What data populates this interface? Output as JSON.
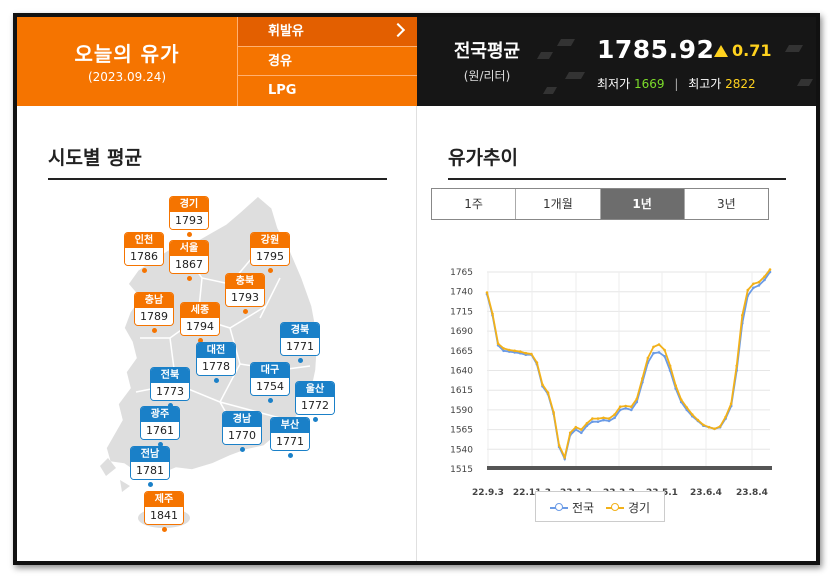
{
  "header": {
    "title": "오늘의 유가",
    "date": "(2023.09.24)",
    "fuel_types": [
      "휘발유",
      "경유",
      "LPG"
    ],
    "national": {
      "title": "전국평균",
      "unit": "(원/리터)",
      "price": "1785.92",
      "change": "0.71",
      "min_label": "최저가",
      "min_value": "1669",
      "max_label": "최고가",
      "max_value": "2822"
    }
  },
  "regional": {
    "title": "시도별 평균",
    "regions": [
      {
        "name": "경기",
        "value": "1793",
        "color": "orange"
      },
      {
        "name": "인천",
        "value": "1786",
        "color": "orange"
      },
      {
        "name": "서울",
        "value": "1867",
        "color": "orange"
      },
      {
        "name": "강원",
        "value": "1795",
        "color": "orange"
      },
      {
        "name": "충북",
        "value": "1793",
        "color": "orange"
      },
      {
        "name": "충남",
        "value": "1789",
        "color": "orange"
      },
      {
        "name": "세종",
        "value": "1794",
        "color": "orange"
      },
      {
        "name": "경북",
        "value": "1771",
        "color": "blue"
      },
      {
        "name": "대전",
        "value": "1778",
        "color": "blue"
      },
      {
        "name": "전북",
        "value": "1773",
        "color": "blue"
      },
      {
        "name": "대구",
        "value": "1754",
        "color": "blue"
      },
      {
        "name": "울산",
        "value": "1772",
        "color": "blue"
      },
      {
        "name": "광주",
        "value": "1761",
        "color": "blue"
      },
      {
        "name": "경남",
        "value": "1770",
        "color": "blue"
      },
      {
        "name": "부산",
        "value": "1771",
        "color": "blue"
      },
      {
        "name": "전남",
        "value": "1781",
        "color": "blue"
      },
      {
        "name": "제주",
        "value": "1841",
        "color": "orange"
      }
    ]
  },
  "trend": {
    "title": "유가추이",
    "periods": [
      "1주",
      "1개월",
      "1년",
      "3년"
    ],
    "active_period": "1년"
  },
  "colors": {
    "orange": "#f57400",
    "blue": "#1a80c8",
    "series_national": "#6b9be6",
    "series_gyeonggi": "#f2b11a"
  },
  "chart_data": {
    "type": "line",
    "x_ticks": [
      "22.9.3",
      "22.11.3",
      "23.1.2",
      "23.3.2",
      "23.5.1",
      "23.6.4",
      "23.8.4"
    ],
    "y_ticks": [
      1765,
      1740,
      1715,
      1690,
      1665,
      1640,
      1615,
      1590,
      1565,
      1540,
      1515
    ],
    "ylim": [
      1515,
      1765
    ],
    "grid": true,
    "legend_position": "bottom",
    "series": [
      {
        "name": "전국",
        "values": [
          1737,
          1710,
          1672,
          1665,
          1664,
          1663,
          1662,
          1660,
          1660,
          1648,
          1620,
          1610,
          1585,
          1543,
          1528,
          1558,
          1565,
          1561,
          1570,
          1575,
          1575,
          1577,
          1576,
          1580,
          1590,
          1592,
          1590,
          1600,
          1625,
          1650,
          1662,
          1663,
          1658,
          1640,
          1617,
          1600,
          1590,
          1582,
          1576,
          1570,
          1568,
          1566,
          1568,
          1579,
          1595,
          1640,
          1700,
          1735,
          1745,
          1748,
          1755,
          1765
        ]
      },
      {
        "name": "경기",
        "values": [
          1739,
          1712,
          1674,
          1668,
          1666,
          1665,
          1664,
          1662,
          1661,
          1650,
          1622,
          1612,
          1587,
          1545,
          1530,
          1561,
          1568,
          1565,
          1573,
          1579,
          1579,
          1580,
          1579,
          1584,
          1594,
          1595,
          1594,
          1604,
          1630,
          1656,
          1670,
          1673,
          1666,
          1646,
          1621,
          1603,
          1593,
          1584,
          1577,
          1571,
          1568,
          1566,
          1569,
          1581,
          1598,
          1646,
          1710,
          1742,
          1750,
          1752,
          1759,
          1768
        ]
      }
    ]
  }
}
